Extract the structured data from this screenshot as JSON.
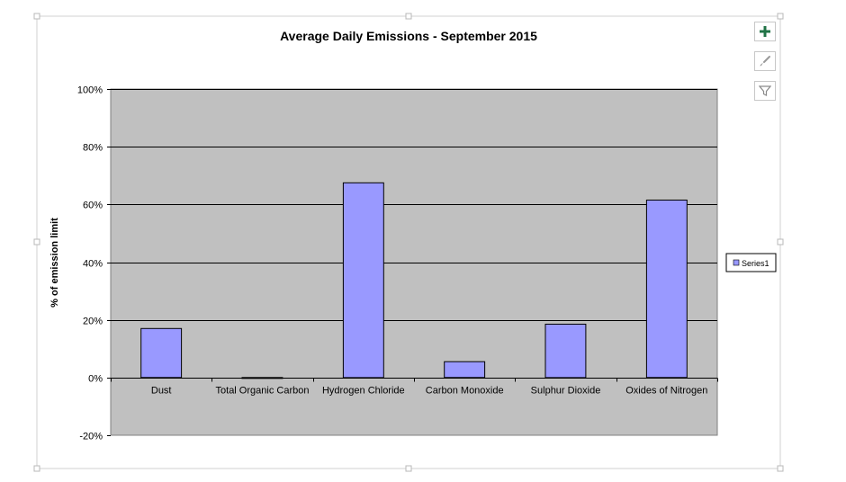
{
  "chart_data": {
    "type": "bar",
    "title": "Average Daily Emissions - September 2015",
    "xlabel": "",
    "ylabel": "% of emission limit",
    "categories": [
      "Dust",
      "Total Organic Carbon",
      "Hydrogen Chloride",
      "Carbon Monoxide",
      "Sulphur Dioxide",
      "Oxides of Nitrogen"
    ],
    "series": [
      {
        "name": "Series1",
        "values": [
          17,
          0,
          67.5,
          5.5,
          18.5,
          61.5
        ]
      }
    ],
    "ylim": [
      -20,
      100
    ],
    "yticks": [
      100,
      80,
      60,
      40,
      20,
      0,
      -20
    ],
    "ytick_labels": [
      "100%",
      "80%",
      "60%",
      "40%",
      "20%",
      "0%",
      "-20%"
    ],
    "grid": true,
    "legend_position": "right",
    "colors": {
      "bar_fill": "#9999ff",
      "plot_background": "#c0c0c0"
    }
  },
  "toolbar": {
    "icons": [
      "plus-icon",
      "brush-icon",
      "filter-icon"
    ],
    "plus_color": "#217346"
  }
}
